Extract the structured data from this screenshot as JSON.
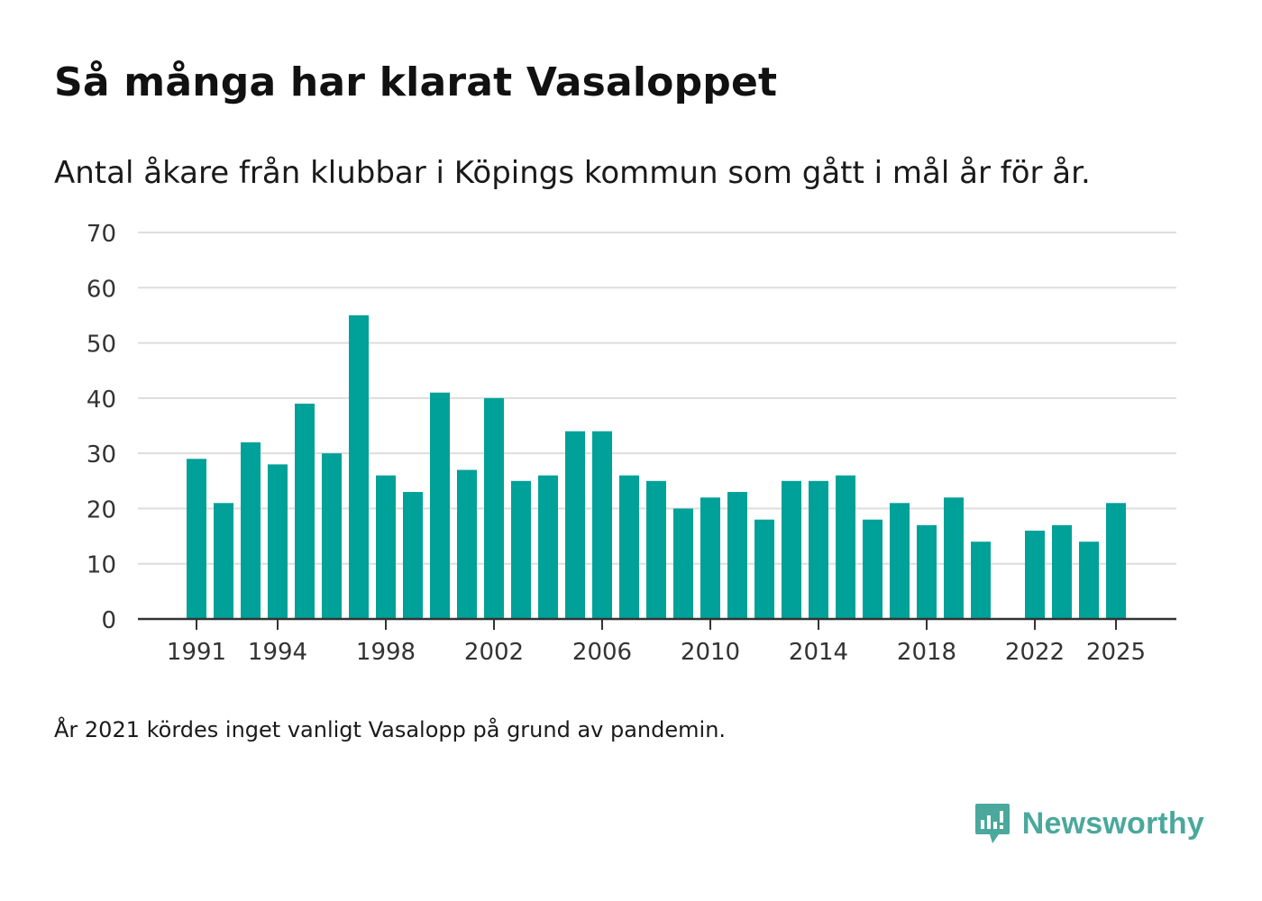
{
  "header": {
    "title": "Så många har klarat Vasaloppet",
    "subtitle": "Antal åkare från klubbar i Köpings kommun som gått i mål år för år."
  },
  "footnote": "År 2021 kördes inget vanligt Vasalopp på grund av pandemin.",
  "brand": {
    "name": "Newsworthy",
    "icon": "newsworthy-logo-icon",
    "color": "#4aa89c"
  },
  "colors": {
    "bar": "#00a198",
    "grid": "#dddddd",
    "axis": "#333333",
    "tick_text": "#333333"
  },
  "chart_data": {
    "type": "bar",
    "title": "Så många har klarat Vasaloppet",
    "subtitle": "Antal åkare från klubbar i Köpings kommun som gått i mål år för år.",
    "xlabel": "",
    "ylabel": "",
    "ylim": [
      0,
      70
    ],
    "y_ticks": [
      0,
      10,
      20,
      30,
      40,
      50,
      60,
      70
    ],
    "x_tick_labels": [
      "1991",
      "1994",
      "1998",
      "2002",
      "2006",
      "2010",
      "2014",
      "2018",
      "2022",
      "2025"
    ],
    "grid": true,
    "categories": [
      1991,
      1992,
      1993,
      1994,
      1995,
      1996,
      1997,
      1998,
      1999,
      2000,
      2001,
      2002,
      2003,
      2004,
      2005,
      2006,
      2007,
      2008,
      2009,
      2010,
      2011,
      2012,
      2013,
      2014,
      2015,
      2016,
      2017,
      2018,
      2019,
      2020,
      2021,
      2022,
      2023,
      2024,
      2025
    ],
    "values": [
      29,
      21,
      32,
      28,
      39,
      30,
      55,
      26,
      23,
      41,
      27,
      40,
      25,
      26,
      34,
      34,
      26,
      25,
      20,
      22,
      23,
      18,
      25,
      25,
      26,
      18,
      21,
      17,
      22,
      14,
      null,
      16,
      17,
      14,
      21
    ]
  }
}
